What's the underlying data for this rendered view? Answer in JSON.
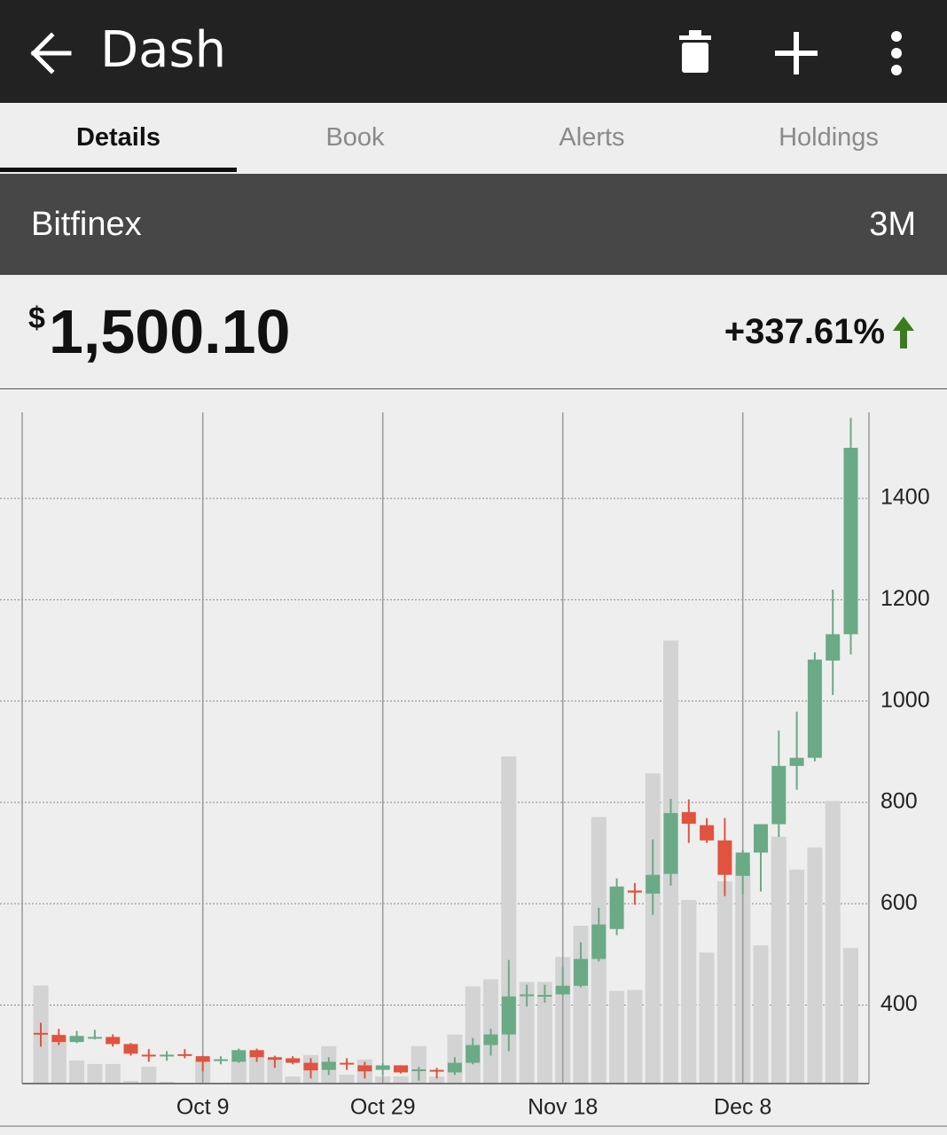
{
  "header": {
    "title": "Dash"
  },
  "tabs": [
    "Details",
    "Book",
    "Alerts",
    "Holdings"
  ],
  "exchange": "Bitfinex",
  "range": "3M",
  "price": {
    "currency": "$",
    "value": "1,500.10"
  },
  "change": "+337.61%",
  "chart_data": {
    "type": "candlestick",
    "categories": [
      null,
      null,
      null,
      null,
      null,
      null,
      null,
      null,
      null,
      "Oct 9",
      null,
      null,
      null,
      null,
      null,
      null,
      null,
      null,
      null,
      "Oct 29",
      null,
      null,
      null,
      null,
      null,
      null,
      null,
      null,
      null,
      "Nov 18",
      null,
      null,
      null,
      null,
      null,
      null,
      null,
      null,
      null,
      "Dec 8",
      null,
      null,
      null,
      null,
      null,
      null
    ],
    "open": [
      345,
      341,
      327,
      335,
      337,
      323,
      302,
      300,
      303,
      299,
      291,
      288,
      311,
      297,
      295,
      286,
      272,
      286,
      281,
      272,
      281,
      271,
      272,
      267,
      286,
      321,
      342,
      419,
      418,
      421,
      438,
      491,
      550,
      626,
      620,
      659,
      781,
      755,
      725,
      655,
      701,
      757,
      872,
      888,
      1080,
      1132
    ],
    "high": [
      365,
      353,
      349,
      351,
      342,
      325,
      313,
      309,
      313,
      300,
      299,
      314,
      314,
      300,
      299,
      295,
      297,
      295,
      288,
      285,
      281,
      278,
      276,
      297,
      335,
      353,
      489,
      440,
      440,
      475,
      524,
      592,
      650,
      641,
      727,
      807,
      806,
      769,
      769,
      706,
      757,
      942,
      979,
      1096,
      1220,
      1559
    ],
    "low": [
      318,
      321,
      325,
      332,
      318,
      300,
      288,
      290,
      295,
      269,
      283,
      286,
      288,
      276,
      283,
      255,
      262,
      272,
      255,
      262,
      265,
      251,
      255,
      262,
      283,
      300,
      309,
      397,
      405,
      419,
      435,
      486,
      538,
      598,
      578,
      636,
      720,
      720,
      615,
      619,
      624,
      732,
      825,
      881,
      1012,
      1092
    ],
    "close": [
      343,
      327,
      339,
      337,
      323,
      304,
      300,
      302,
      301,
      288,
      293,
      311,
      297,
      292,
      286,
      271,
      288,
      284,
      269,
      281,
      267,
      273,
      270,
      286,
      321,
      342,
      417,
      421,
      420,
      438,
      491,
      559,
      634,
      622,
      657,
      779,
      758,
      725,
      657,
      701,
      757,
      872,
      888,
      1082,
      1132,
      1500
    ],
    "volume": [
      110,
      47,
      26,
      22,
      22,
      3,
      19,
      2,
      0,
      26,
      0,
      27,
      37,
      27,
      8,
      32,
      42,
      10,
      27,
      8,
      8,
      42,
      8,
      55,
      109,
      117,
      367,
      114,
      114,
      142,
      177,
      299,
      104,
      105,
      348,
      497,
      206,
      147,
      227,
      247,
      155,
      277,
      240,
      265,
      317,
      152
    ],
    "up_color": "#6aaa86",
    "down_color": "#e0533f",
    "volume_color": "#d3d3d3",
    "ylim": [
      245,
      1570
    ],
    "yticks": [
      400,
      600,
      800,
      1000,
      1200,
      1400
    ],
    "grid": true
  }
}
